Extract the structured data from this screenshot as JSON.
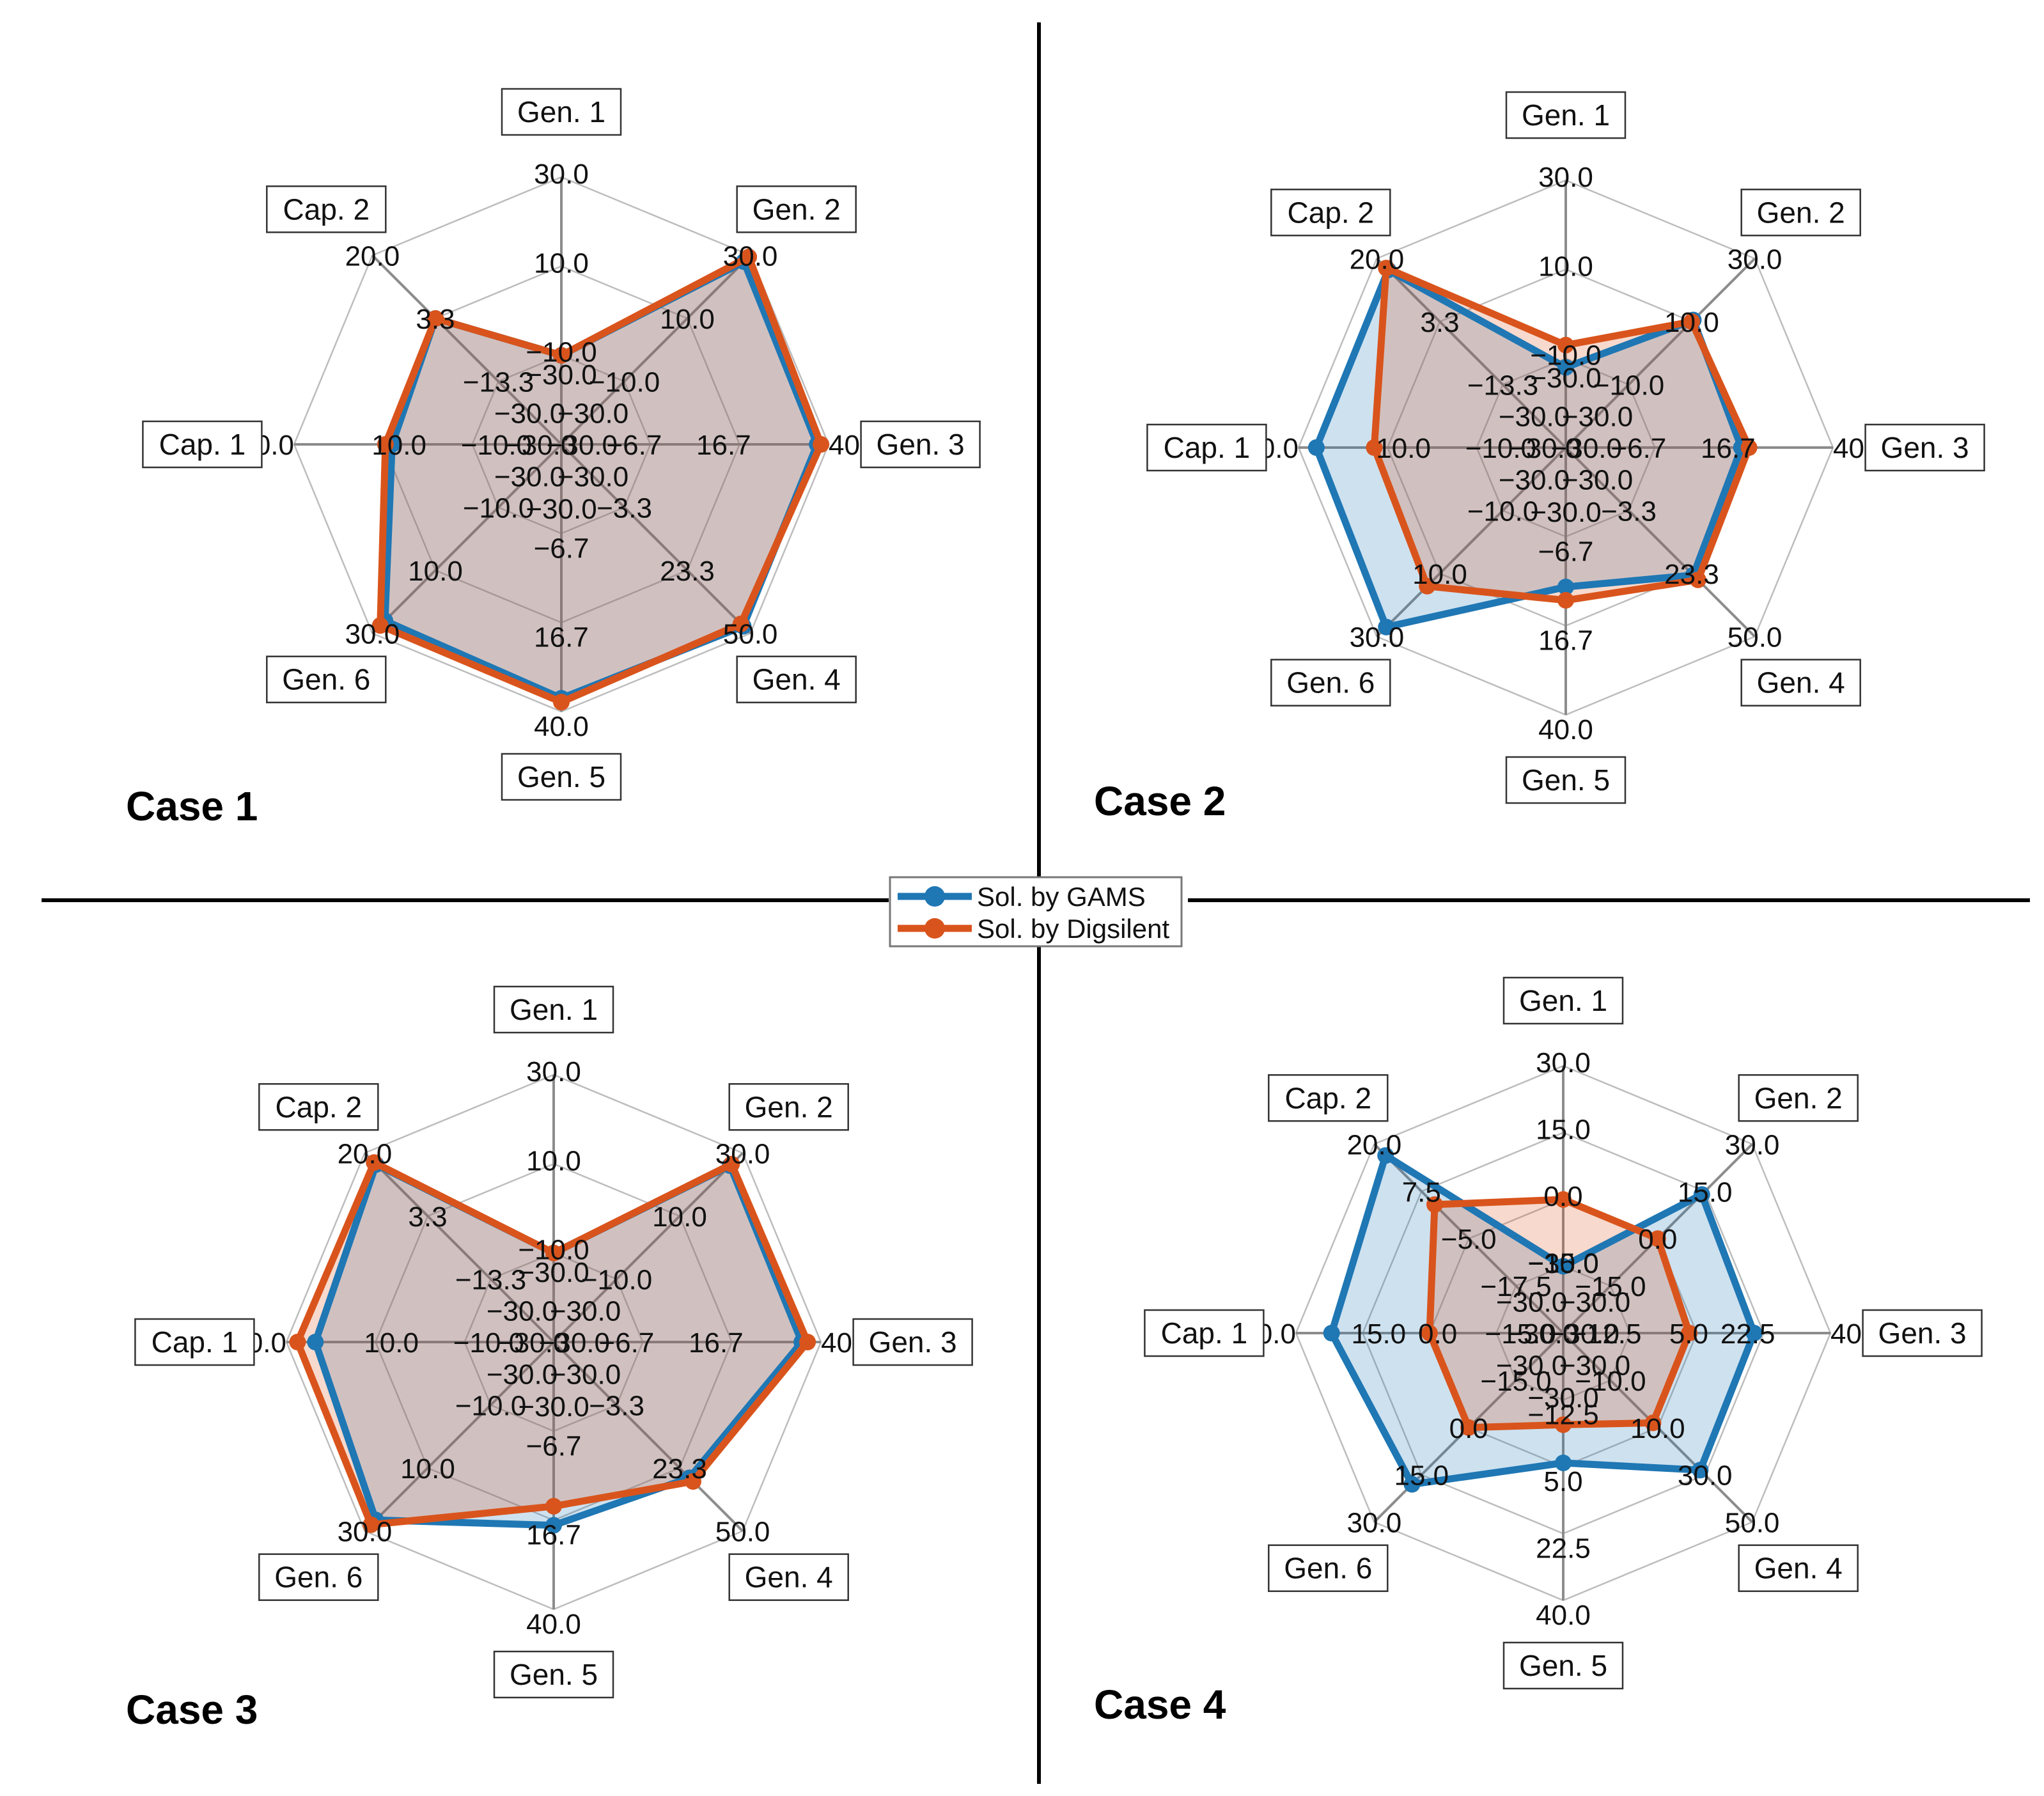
{
  "legend": {
    "items": [
      {
        "label": "Sol. by GAMS",
        "color": "#1f77b4"
      },
      {
        "label": "Sol. by Digsilent",
        "color": "#d9541c"
      }
    ]
  },
  "chart_data": [
    {
      "type": "radar",
      "title": "Case 1",
      "axes": [
        "Gen. 1",
        "Gen. 2",
        "Gen. 3",
        "Gen. 4",
        "Gen. 5",
        "Gen. 6",
        "Cap. 1",
        "Cap. 2"
      ],
      "axis_ticks": [
        [
          "-30.0",
          "-10.0",
          "10.0",
          "30.0"
        ],
        [
          "-30.0",
          "-10.0",
          "10.0",
          "30.0"
        ],
        [
          "-30.0",
          "-6.7",
          "16.7",
          "40.0"
        ],
        [
          "-30.0",
          "-3.3",
          "23.3",
          "50.0"
        ],
        [
          "-30.0",
          "-6.7",
          "16.7",
          "40.0"
        ],
        [
          "-30.0",
          "-10.0",
          "10.0",
          "30.0"
        ],
        [
          "-30.0",
          "-10.0",
          "10.0",
          "30.0"
        ],
        [
          "-30.0",
          "-13.3",
          "3.3",
          "20.0"
        ]
      ],
      "axis_ranges": [
        [
          -30,
          30
        ],
        [
          -30,
          30
        ],
        [
          -30,
          40
        ],
        [
          -30,
          50
        ],
        [
          -30,
          40
        ],
        [
          -30,
          30
        ],
        [
          -30,
          30
        ],
        [
          -30,
          20
        ]
      ],
      "grid": true,
      "series": [
        {
          "name": "Sol. by GAMS",
          "values": [
            -10,
            28,
            37,
            47,
            36.5,
            26,
            8,
            3.3
          ]
        },
        {
          "name": "Sol. by Digsilent",
          "values": [
            -10,
            29.5,
            38,
            46,
            37.5,
            27.5,
            9.5,
            3.3
          ]
        }
      ]
    },
    {
      "type": "radar",
      "title": "Case 2",
      "axes": [
        "Gen. 1",
        "Gen. 2",
        "Gen. 3",
        "Gen. 4",
        "Gen. 5",
        "Gen. 6",
        "Cap. 1",
        "Cap. 2"
      ],
      "axis_ticks": [
        [
          "-30.0",
          "-10.0",
          "10.0",
          "30.0"
        ],
        [
          "-30.0",
          "-10.0",
          "10.0",
          "30.0"
        ],
        [
          "-30.0",
          "-6.7",
          "16.7",
          "40.0"
        ],
        [
          "-30.0",
          "-3.3",
          "23.3",
          "50.0"
        ],
        [
          "-30.0",
          "-6.7",
          "16.7",
          "40.0"
        ],
        [
          "-30.0",
          "-10.0",
          "10.0",
          "30.0"
        ],
        [
          "-30.0",
          "-10.0",
          "10.0",
          "30.0"
        ],
        [
          "-30.0",
          "-13.3",
          "3.3",
          "20.0"
        ]
      ],
      "axis_ranges": [
        [
          -30,
          30
        ],
        [
          -30,
          30
        ],
        [
          -30,
          40
        ],
        [
          -30,
          50
        ],
        [
          -30,
          40
        ],
        [
          -30,
          30
        ],
        [
          -30,
          30
        ],
        [
          -30,
          20
        ]
      ],
      "grid": true,
      "series": [
        {
          "name": "Sol. by GAMS",
          "values": [
            -12,
            10.5,
            16,
            24,
            6.5,
            27,
            26,
            17
          ]
        },
        {
          "name": "Sol. by Digsilent",
          "values": [
            -7,
            10,
            18,
            26,
            10,
            14,
            13,
            17.5
          ]
        }
      ]
    },
    {
      "type": "radar",
      "title": "Case 3",
      "axes": [
        "Gen. 1",
        "Gen. 2",
        "Gen. 3",
        "Gen. 4",
        "Gen. 5",
        "Gen. 6",
        "Cap. 1",
        "Cap. 2"
      ],
      "axis_ticks": [
        [
          "-30.0",
          "-10.0",
          "10.0",
          "30.0"
        ],
        [
          "-30.0",
          "-10.0",
          "10.0",
          "30.0"
        ],
        [
          "-30.0",
          "-6.7",
          "16.7",
          "40.0"
        ],
        [
          "-30.0",
          "-3.3",
          "23.3",
          "50.0"
        ],
        [
          "-30.0",
          "-6.7",
          "16.7",
          "40.0"
        ],
        [
          "-30.0",
          "-10.0",
          "10.0",
          "30.0"
        ],
        [
          "-30.0",
          "-10.0",
          "10.0",
          "30.0"
        ],
        [
          "-30.0",
          "-13.3",
          "3.3",
          "20.0"
        ]
      ],
      "axis_ranges": [
        [
          -30,
          30
        ],
        [
          -30,
          30
        ],
        [
          -30,
          40
        ],
        [
          -30,
          50
        ],
        [
          -30,
          40
        ],
        [
          -30,
          30
        ],
        [
          -30,
          30
        ],
        [
          -30,
          20
        ]
      ],
      "grid": true,
      "series": [
        {
          "name": "Sol. by GAMS",
          "values": [
            -10,
            26,
            35,
            27.5,
            18,
            26.5,
            23.5,
            17
          ]
        },
        {
          "name": "Sol. by Digsilent",
          "values": [
            -10,
            26.5,
            36.5,
            29,
            13,
            28,
            27.5,
            17.5
          ]
        }
      ]
    },
    {
      "type": "radar",
      "title": "Case 4",
      "axes": [
        "Gen. 1",
        "Gen. 2",
        "Gen. 3",
        "Gen. 4",
        "Gen. 5",
        "Gen. 6",
        "Cap. 1",
        "Cap. 2"
      ],
      "axis_ticks": [
        [
          "-30.0",
          "-15.0",
          "0.0",
          "15.0",
          "30.0"
        ],
        [
          "-30.0",
          "-15.0",
          "0.0",
          "15.0",
          "30.0"
        ],
        [
          "-30.0",
          "-12.5",
          "5.0",
          "22.5",
          "40.0"
        ],
        [
          "-30.0",
          "-10.0",
          "10.0",
          "30.0",
          "50.0"
        ],
        [
          "-30.0",
          "-12.5",
          "5.0",
          "22.5",
          "40.0"
        ],
        [
          "-30.0",
          "-15.0",
          "0.0",
          "15.0",
          "30.0"
        ],
        [
          "-30.0",
          "-15.0",
          "0.0",
          "15.0",
          "30.0"
        ],
        [
          "-30.0",
          "-17.5",
          "-5.0",
          "7.5",
          "20.0"
        ]
      ],
      "axis_ranges": [
        [
          -30,
          30
        ],
        [
          -30,
          30
        ],
        [
          -30,
          40
        ],
        [
          -30,
          50
        ],
        [
          -30,
          40
        ],
        [
          -30,
          30
        ],
        [
          -30,
          30
        ],
        [
          -30,
          20
        ]
      ],
      "grid": true,
      "series": [
        {
          "name": "Sol. by GAMS",
          "values": [
            -15,
            14,
            20,
            28,
            4,
            18,
            22,
            17
          ]
        },
        {
          "name": "Sol. by Digsilent",
          "values": [
            0,
            0,
            3,
            8,
            -6,
            0,
            0,
            4
          ]
        }
      ]
    }
  ]
}
